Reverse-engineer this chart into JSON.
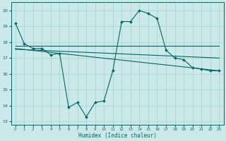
{
  "title": "",
  "xlabel": "Humidex (Indice chaleur)",
  "ylabel": "",
  "bg_color": "#cce9e9",
  "grid_color": "#aad4d4",
  "line_color": "#006666",
  "xlim": [
    -0.5,
    23.5
  ],
  "ylim": [
    12.8,
    20.5
  ],
  "yticks": [
    13,
    14,
    15,
    16,
    17,
    18,
    19,
    20
  ],
  "xticks": [
    0,
    1,
    2,
    3,
    4,
    5,
    6,
    7,
    8,
    9,
    10,
    11,
    12,
    13,
    14,
    15,
    16,
    17,
    18,
    19,
    20,
    21,
    22,
    23
  ],
  "lines": [
    {
      "x": [
        0,
        1,
        2,
        3,
        4,
        5,
        6,
        7,
        8,
        9,
        10,
        11,
        12,
        13,
        14,
        15,
        16,
        17,
        18,
        19,
        20,
        21,
        22,
        23
      ],
      "y": [
        19.2,
        17.9,
        17.6,
        17.6,
        17.2,
        17.3,
        13.9,
        14.2,
        13.3,
        14.2,
        14.3,
        16.2,
        19.3,
        19.3,
        20.0,
        19.8,
        19.5,
        17.5,
        17.0,
        16.9,
        16.4,
        16.3,
        16.2,
        16.2
      ],
      "marker": "D",
      "markersize": 2.0
    },
    {
      "x": [
        0,
        23
      ],
      "y": [
        17.75,
        17.75
      ],
      "marker": null
    },
    {
      "x": [
        0,
        23
      ],
      "y": [
        17.6,
        16.2
      ],
      "marker": null
    },
    {
      "x": [
        0,
        23
      ],
      "y": [
        17.55,
        17.0
      ],
      "marker": null
    }
  ]
}
